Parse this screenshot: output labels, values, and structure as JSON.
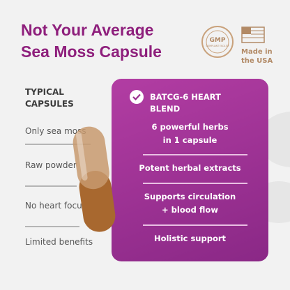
{
  "header": {
    "title_lines": [
      "Not Your Average",
      "Sea Moss Capsule"
    ],
    "badges": {
      "gmp": {
        "main": "GMP",
        "sub": "COMPLIANT FACILITY"
      },
      "usa": [
        "Made in",
        "the USA"
      ]
    }
  },
  "typical": {
    "heading": [
      "TYPICAL",
      "CAPSULES"
    ],
    "items": [
      "Only sea moss",
      "Raw powder",
      "No heart focus",
      "Limited benefits"
    ]
  },
  "blend": {
    "heading": [
      "BATCG-6 HEART",
      "BLEND"
    ],
    "items": [
      [
        "6 powerful herbs",
        "in 1 capsule"
      ],
      [
        "Potent herbal extracts"
      ],
      [
        "Supports circulation",
        "+ blood flow"
      ],
      [
        "Holistic support"
      ]
    ]
  }
}
